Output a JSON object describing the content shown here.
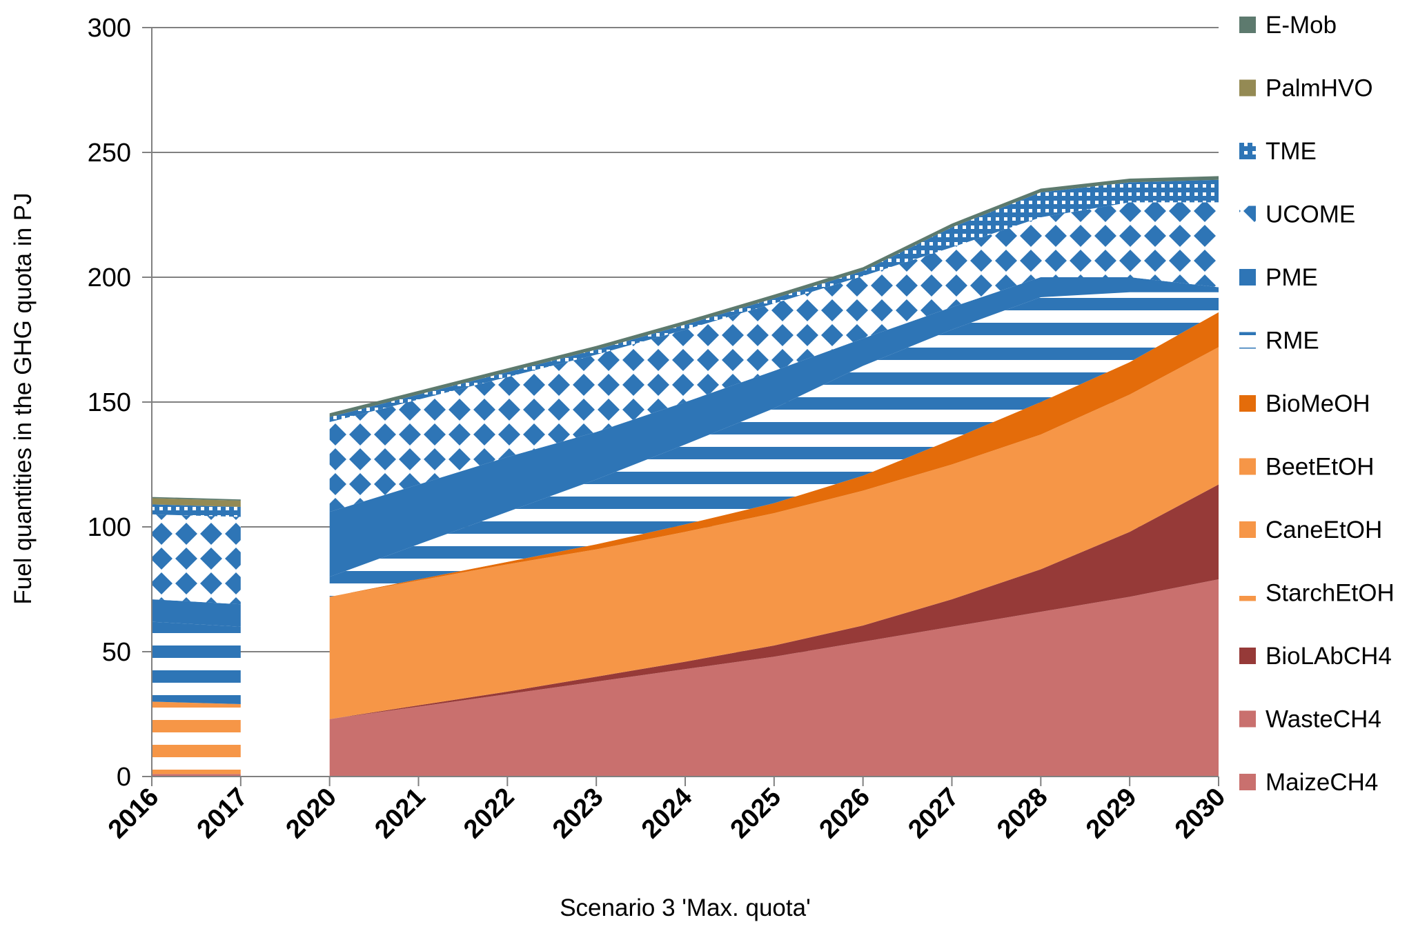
{
  "chart_data": {
    "type": "area",
    "title": "",
    "xlabel": "Scenario 3 'Max. quota'",
    "ylabel": "Fuel quantities in the GHG quota in PJ",
    "ylim": [
      0,
      300
    ],
    "yticks": [
      "0",
      "50",
      "100",
      "150",
      "200",
      "250",
      "300"
    ],
    "categories": [
      "2016",
      "2017",
      "2020",
      "2021",
      "2022",
      "2023",
      "2024",
      "2025",
      "2026",
      "2027",
      "2028",
      "2029",
      "2030"
    ],
    "legend_position": "right",
    "gap_between": [
      "2017",
      "2020"
    ],
    "series": [
      {
        "name": "MaizeCH4",
        "color": "#C9706E",
        "pattern": "solid",
        "values": [
          1,
          1,
          0,
          0,
          0,
          0,
          0,
          0,
          0,
          0,
          0,
          0,
          0
        ]
      },
      {
        "name": "WasteCH4",
        "color": "#C9706E",
        "pattern": "solid",
        "values": [
          0,
          0,
          23,
          28,
          33,
          38,
          43,
          48,
          54,
          60,
          66,
          72,
          79
        ]
      },
      {
        "name": "BioLAbCH4",
        "color": "#963A38",
        "pattern": "solid",
        "values": [
          0,
          0,
          0,
          0.5,
          1,
          2,
          3,
          4.5,
          6.5,
          11,
          17,
          26,
          38
        ]
      },
      {
        "name": "StarchEtOH",
        "color": "#F69647",
        "pattern": "hstripe",
        "values": [
          29,
          28,
          0,
          0,
          0,
          0,
          0,
          0,
          0,
          0,
          0,
          0,
          0
        ]
      },
      {
        "name": "CaneEtOH",
        "color": "#F69647",
        "pattern": "solid",
        "values": [
          0,
          0,
          49,
          50,
          51,
          51,
          52,
          53,
          54,
          54,
          54,
          55,
          55
        ]
      },
      {
        "name": "BeetEtOH",
        "color": "#F69647",
        "pattern": "solid",
        "values": [
          0,
          0,
          0,
          0,
          0,
          0,
          0,
          0,
          0,
          0,
          0,
          0,
          0
        ]
      },
      {
        "name": "BioMeOH",
        "color": "#E46C0A",
        "pattern": "solid",
        "values": [
          0,
          0,
          0,
          0.5,
          1,
          2,
          3,
          4,
          6,
          10,
          13,
          13,
          14
        ]
      },
      {
        "name": "RME",
        "color": "#2E75B6",
        "pattern": "hstripe",
        "values": [
          32,
          31,
          8,
          14,
          20,
          26,
          32,
          38,
          44,
          44,
          42,
          28,
          8
        ]
      },
      {
        "name": "PME",
        "color": "#2E75B6",
        "pattern": "solid",
        "values": [
          9,
          9,
          26,
          24,
          22,
          19,
          17,
          15,
          11,
          9,
          8,
          6,
          2
        ]
      },
      {
        "name": "UCOME",
        "color": "#2E75B6",
        "pattern": "diamond",
        "values": [
          34,
          35,
          36,
          34,
          32,
          31,
          29,
          27,
          25,
          24,
          24,
          30,
          34
        ]
      },
      {
        "name": "TME",
        "color": "#2E75B6",
        "pattern": "dotted",
        "values": [
          4,
          4,
          2,
          2,
          2,
          2,
          2,
          2,
          2,
          8,
          10,
          8,
          9
        ]
      },
      {
        "name": "PalmHVO",
        "color": "#948A54",
        "pattern": "solid",
        "values": [
          2.5,
          2.5,
          0,
          0,
          0,
          0,
          0,
          0,
          0,
          0,
          0,
          0,
          0
        ]
      },
      {
        "name": "E-Mob",
        "color": "#5D7A6E",
        "pattern": "solid",
        "values": [
          0.5,
          0.5,
          1.5,
          1.5,
          1.5,
          1.5,
          1.5,
          1.5,
          1.5,
          1.5,
          1.5,
          1.5,
          1.5
        ]
      }
    ],
    "legend_order": [
      "E-Mob",
      "PalmHVO",
      "TME",
      "UCOME",
      "PME",
      "RME",
      "BioMeOH",
      "BeetEtOH",
      "CaneEtOH",
      "StarchEtOH",
      "BioLAbCH4",
      "WasteCH4",
      "MaizeCH4"
    ]
  }
}
